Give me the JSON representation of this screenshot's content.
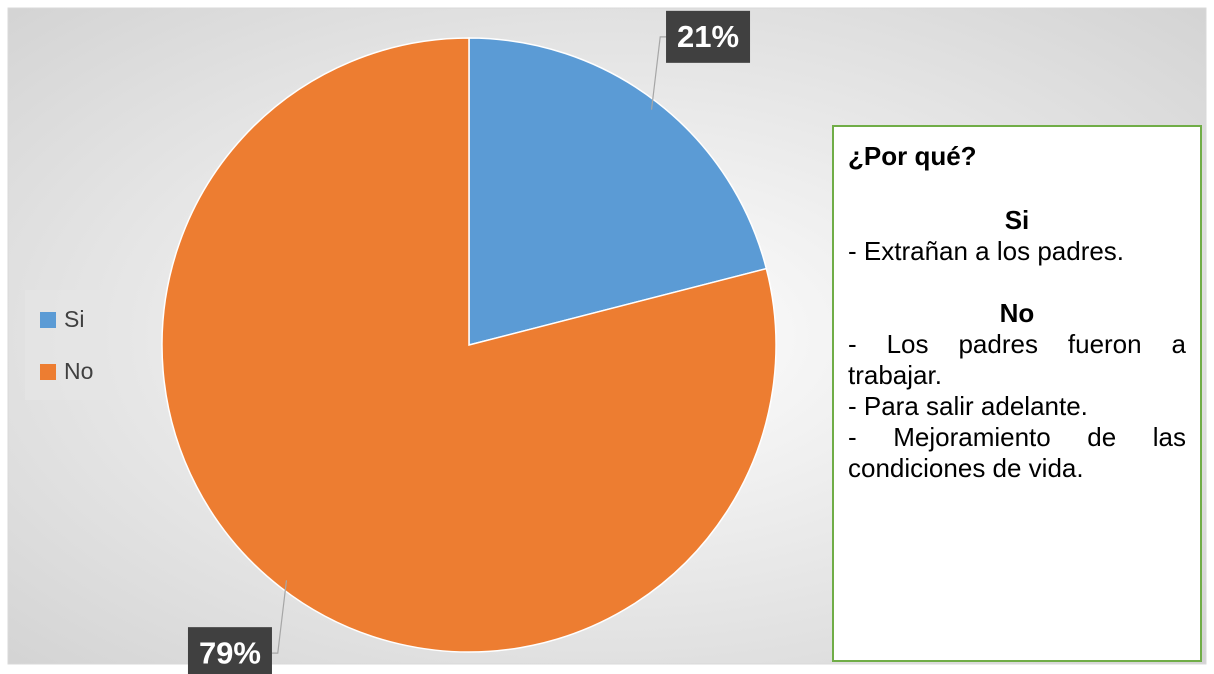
{
  "chart_data": {
    "type": "pie",
    "categories": [
      "Si",
      "No"
    ],
    "values": [
      21,
      79
    ],
    "value_labels": [
      "21%",
      "79%"
    ],
    "colors": [
      "#5b9bd5",
      "#ed7d31"
    ],
    "legend": "left",
    "annotation": {
      "title": "¿Por qué?",
      "sections": [
        {
          "heading": "Si",
          "items": [
            "- Extrañan a los padres."
          ]
        },
        {
          "heading": "No",
          "items": [
            "- Los padres fueron a trabajar.",
            "- Para salir adelante.",
            "- Mejoramiento de las condiciones de vida."
          ]
        }
      ]
    }
  }
}
